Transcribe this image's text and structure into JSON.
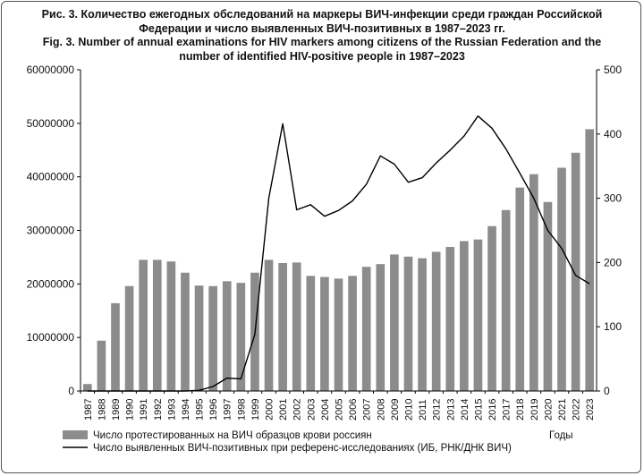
{
  "title": {
    "ru_line1": "Рис. 3. Количество ежегодных обследований на маркеры ВИЧ-инфекции среди граждан Российской",
    "ru_line2": "Федерации и число выявленных ВИЧ-позитивных в 1987–2023 гг.",
    "en_line1": "Fig. 3. Number of annual examinations for HIV markers among citizens of the Russian Federation and the",
    "en_line2": "number of identified HIV-positive people in 1987–2023"
  },
  "chart_data": {
    "type": "bar",
    "categories": [
      "1987",
      "1988",
      "1989",
      "1990",
      "1991",
      "1992",
      "1993",
      "1994",
      "1995",
      "1996",
      "1997",
      "1998",
      "1999",
      "2000",
      "2001",
      "2002",
      "2003",
      "2004",
      "2005",
      "2006",
      "2007",
      "2008",
      "2009",
      "2010",
      "2011",
      "2012",
      "2013",
      "2014",
      "2015",
      "2016",
      "2017",
      "2018",
      "2019",
      "2020",
      "2021",
      "2022",
      "2023"
    ],
    "series": [
      {
        "name": "Число протестированных на ВИЧ образцов крови россиян",
        "kind": "bar",
        "axis": "left",
        "color": "#8c8c8c",
        "values": [
          1300000,
          9400000,
          16400000,
          19600000,
          24500000,
          24500000,
          24200000,
          22100000,
          19700000,
          19600000,
          20500000,
          20200000,
          22100000,
          24500000,
          23900000,
          24000000,
          21500000,
          21300000,
          21000000,
          21500000,
          23200000,
          23700000,
          25500000,
          25100000,
          24800000,
          26000000,
          26900000,
          28000000,
          28300000,
          30800000,
          33800000,
          38000000,
          40500000,
          35300000,
          41700000,
          44500000,
          48900000
        ]
      },
      {
        "name": "Число выявленных ВИЧ-позитивных при референс-исследованиях (ИБ, РНК/ДНК ВИЧ)",
        "kind": "line",
        "axis": "right",
        "color": "#000000",
        "values": [
          0,
          0,
          0,
          0,
          0,
          0,
          0,
          0,
          1,
          7,
          20,
          19,
          88,
          300,
          416,
          282,
          290,
          272,
          281,
          296,
          322,
          366,
          353,
          325,
          332,
          355,
          375,
          397,
          428,
          409,
          377,
          339,
          300,
          250,
          222,
          180,
          167
        ]
      }
    ],
    "y_left": {
      "min": 0,
      "max": 60000000,
      "ticks": [
        "0",
        "10000000",
        "20000000",
        "30000000",
        "40000000",
        "50000000",
        "60000000"
      ]
    },
    "y_right": {
      "min": 0,
      "max": 500,
      "ticks": [
        "0",
        "100",
        "200",
        "300",
        "400",
        "500"
      ]
    },
    "xlabel": "Годы",
    "legend_position": "bottom-left"
  }
}
